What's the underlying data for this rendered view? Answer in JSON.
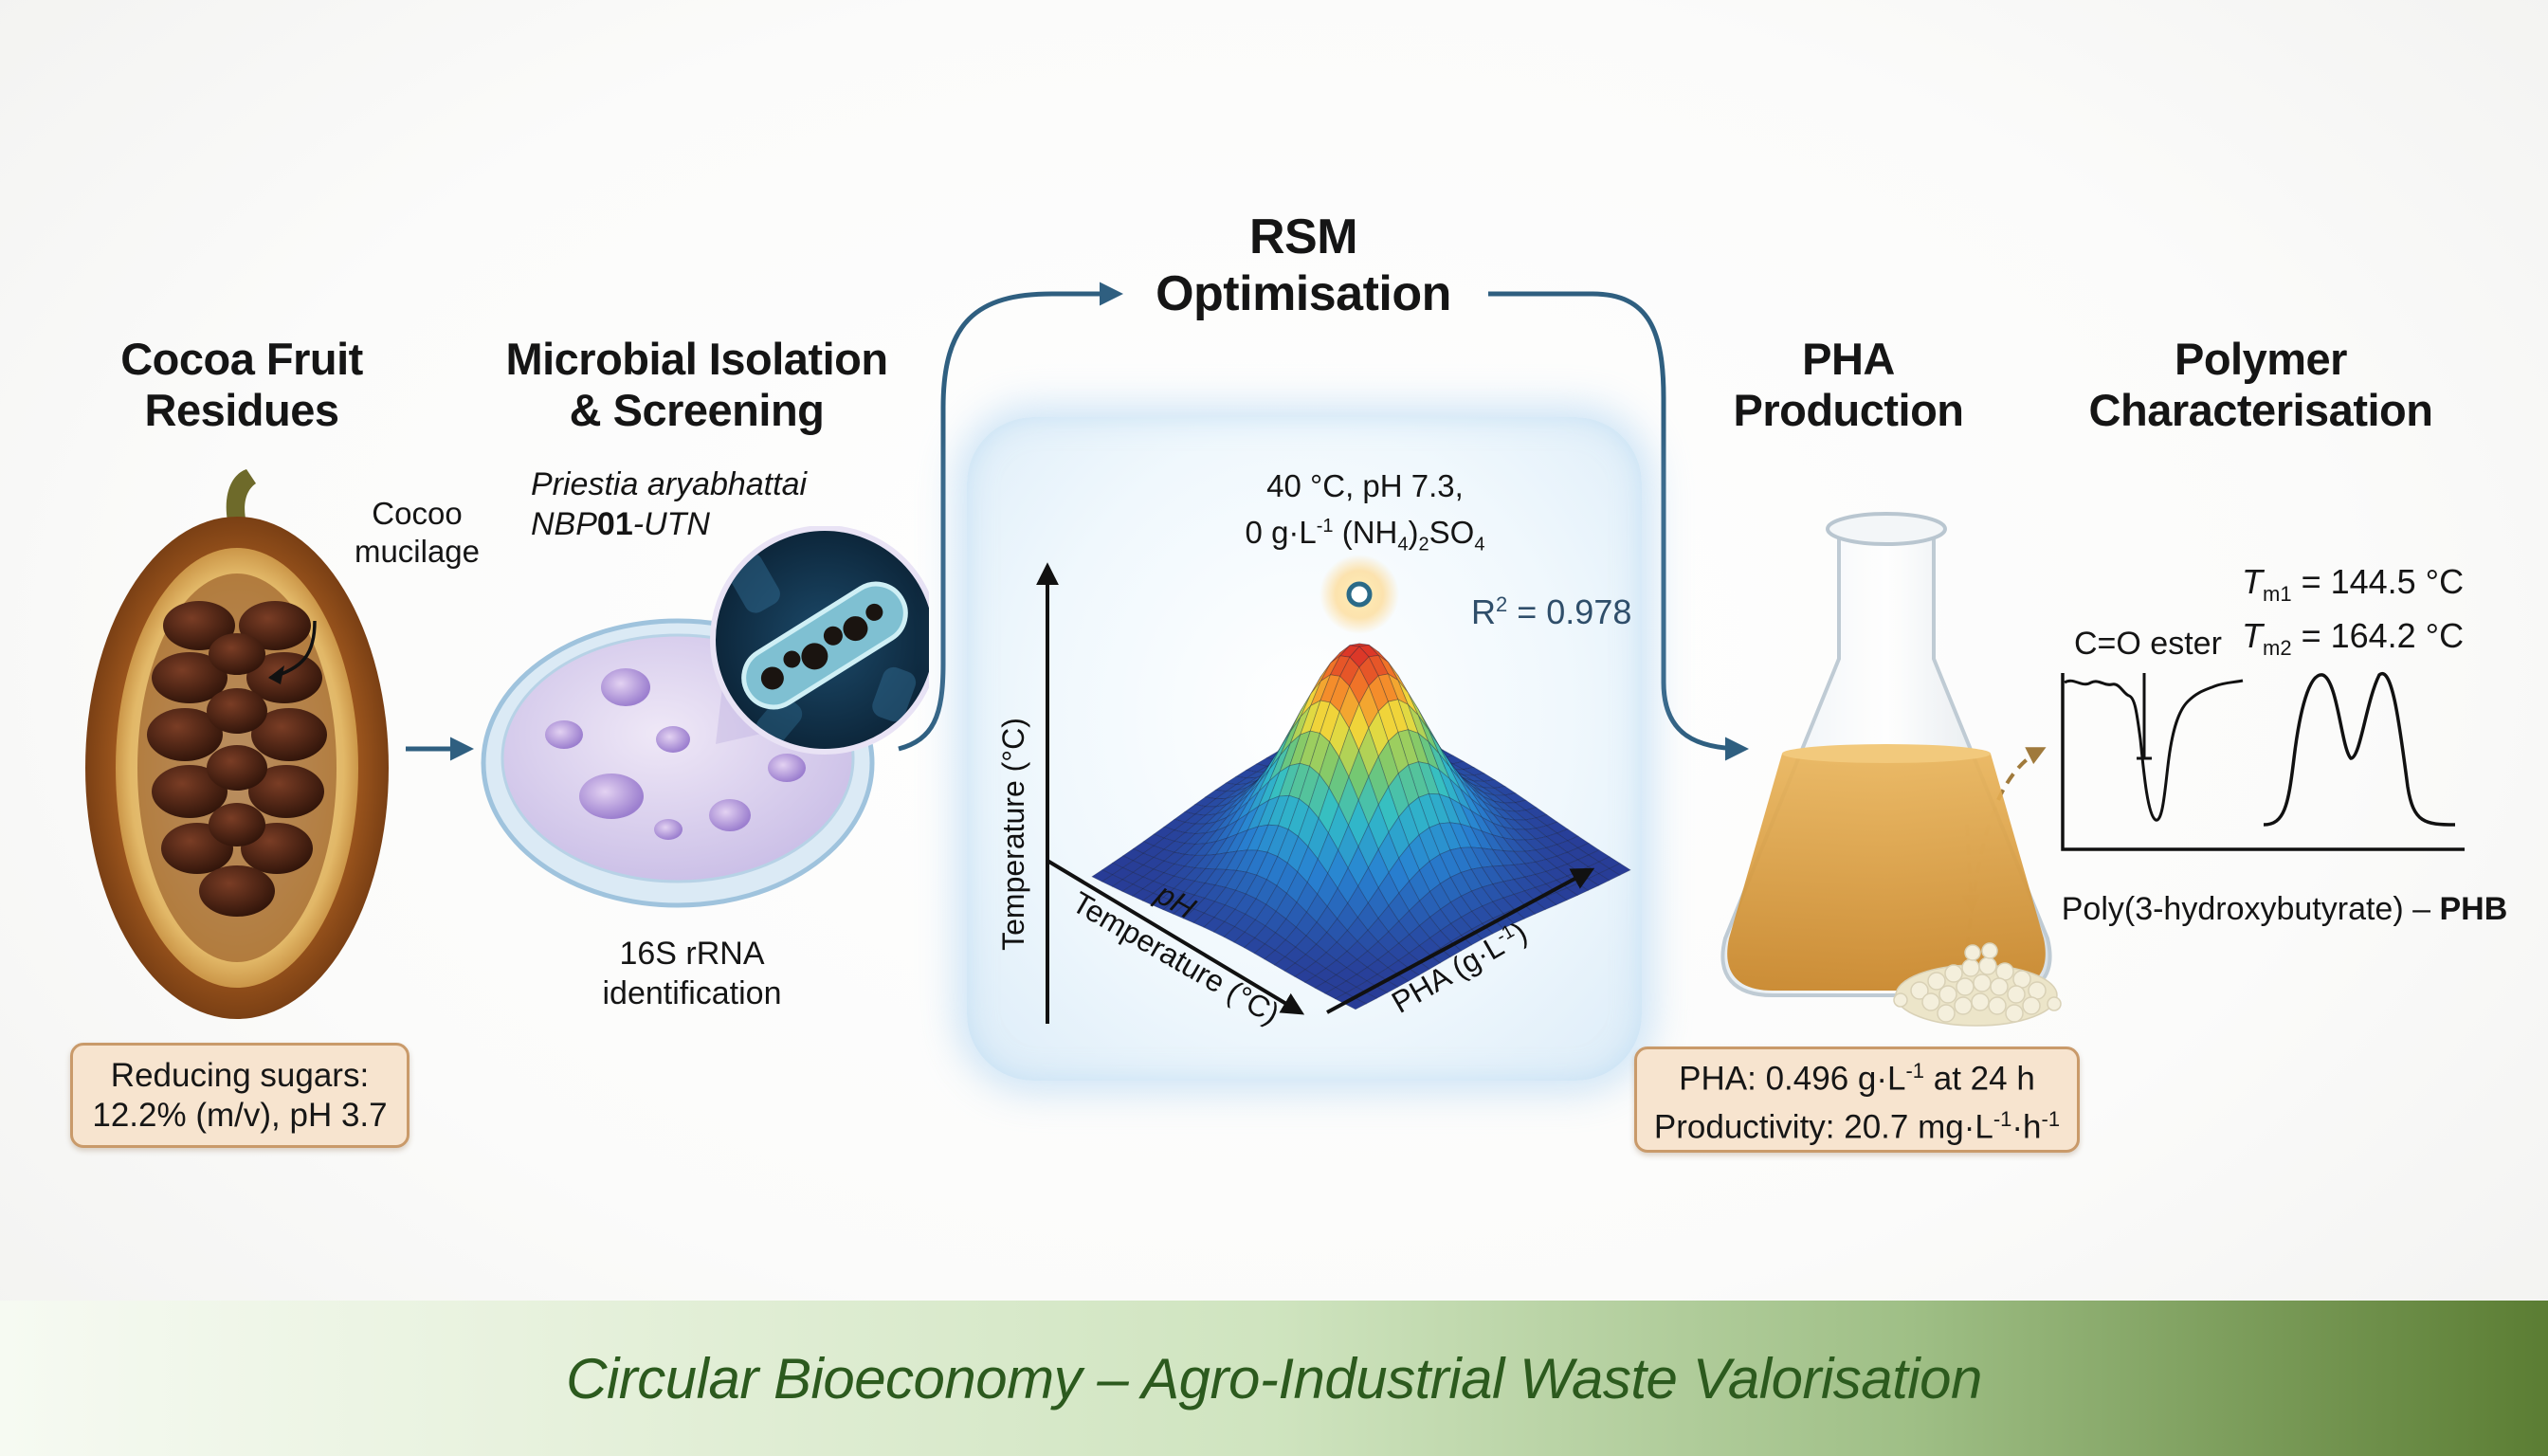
{
  "stages": [
    {
      "title_line1": "Cocoa Fruit",
      "title_line2": "Residues"
    },
    {
      "title_line1": "Microbial Isolation",
      "title_line2": "& Screening"
    },
    {
      "title_line1": "RSM",
      "title_line2": "Optimisation"
    },
    {
      "title_line1": "PHA",
      "title_line2": "Production"
    },
    {
      "title_line1": "Polymer",
      "title_line2": "Characterisation"
    }
  ],
  "cocoa": {
    "mucilage_label_line1": "Cocoo",
    "mucilage_label_line2": "mucilage",
    "sugars_line1": "Reducing sugars:",
    "sugars_line2": "12.2% (m/v), pH 3.7"
  },
  "microbe": {
    "species_line1": "Priestia aryabhattai",
    "strain_prefix": "NBP",
    "strain_bold": "01",
    "strain_suffix": "-UTN",
    "identification_line1": "16S rRNA",
    "identification_line2": "identification"
  },
  "rsm": {
    "optimum_line1": "40 °C, pH 7.3,",
    "optimum_line2_pre": "0 g·L",
    "optimum_line2_sup": "-1",
    "optimum_line2_mid": " (NH",
    "optimum_line2_sub1": "4",
    "optimum_line2_mid2": ")",
    "optimum_line2_sub2": "2",
    "optimum_line2_post": "SO",
    "optimum_line2_sub3": "4",
    "r2_label": "R",
    "r2_sup": "2",
    "r2_value": " = 0.978",
    "axis_vertical": "Temperature (°C)",
    "axis_ph": "pH",
    "axis_temperature": "Temperature (°C)",
    "axis_pha": "PHA (g·L",
    "axis_pha_sup": "-1",
    "axis_pha_close": ")"
  },
  "production": {
    "line1_pre": "PHA: 0.496 g·L",
    "line1_sup": "-1",
    "line1_post": " at 24 h",
    "line2_pre": "Productivity: 20.7 mg·L",
    "line2_sup1": "-1",
    "line2_mid": "·h",
    "line2_sup2": "-1"
  },
  "characterisation": {
    "tm1_sym": "T",
    "tm1_sub": "m1",
    "tm1_value": " = 144.5 °C",
    "tm2_sym": "T",
    "tm2_sub": "m2",
    "tm2_value": " = 164.2 °C",
    "ester_label": "C=O ester",
    "polymer_name": "Poly(3-hydroxybutyrate) – ",
    "polymer_abbrev": "PHB"
  },
  "footer": {
    "text": "Circular Bioeconomy – Agro-Industrial Waste Valorisation"
  },
  "colors": {
    "arrow": "#2f5f80",
    "info_box_fill": "#f7e4cf",
    "info_box_border": "#c99a6a",
    "footer_text": "#2c5a1e",
    "dashed_arrow": "#a07a3c"
  }
}
